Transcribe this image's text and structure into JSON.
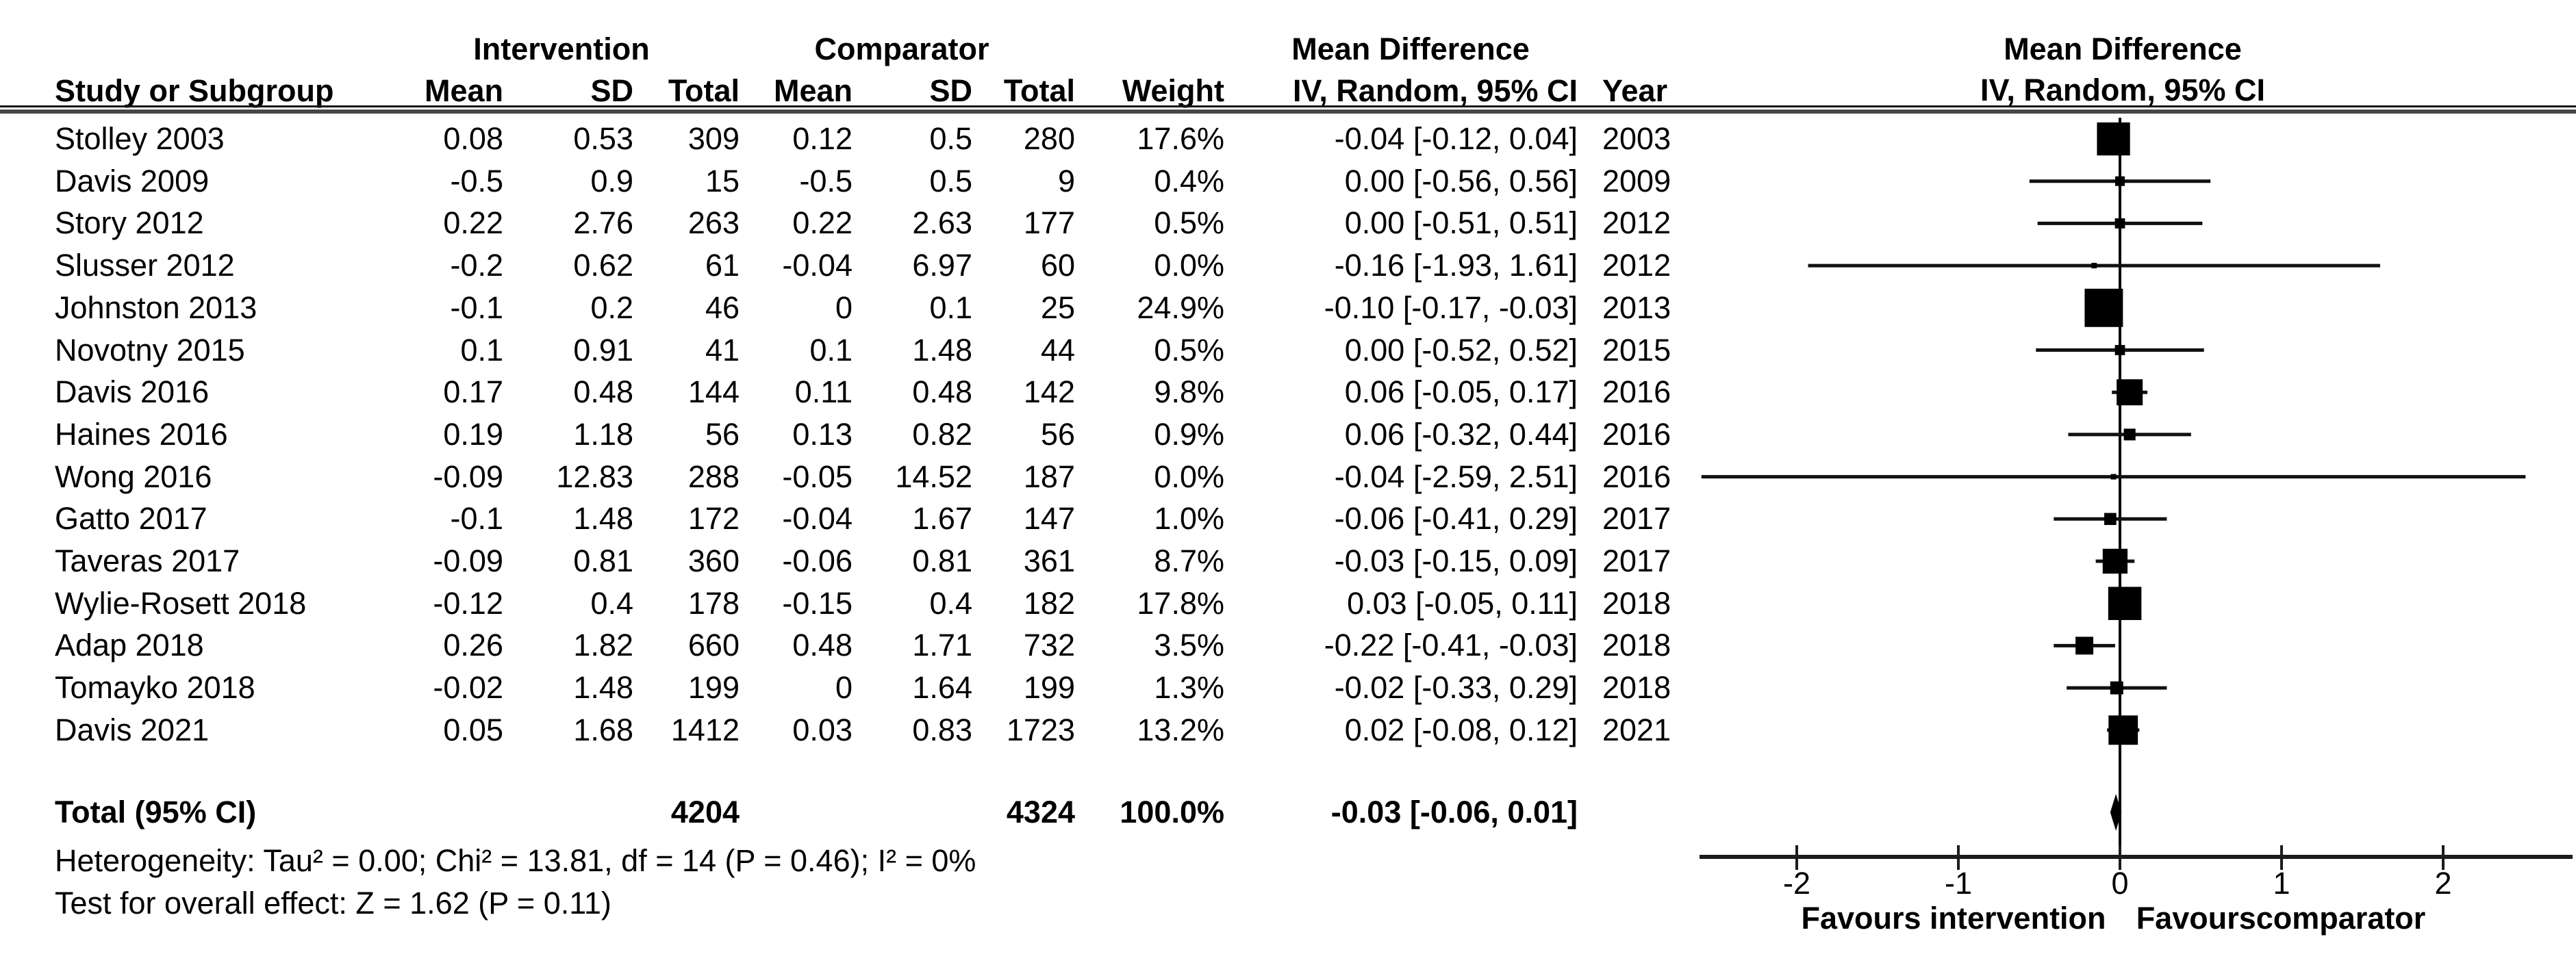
{
  "header": {
    "group_intervention": "Intervention",
    "group_comparator": "Comparator",
    "md_text_title": "Mean Difference",
    "md_text_subtitle": "IV, Random, 95% CI",
    "md_plot_title": "Mean Difference",
    "md_plot_subtitle": "IV, Random, 95% CI",
    "col_study": "Study or Subgroup",
    "col_mean_intervention": "Mean",
    "col_sd_intervention": "SD",
    "col_total_intervention": "Total",
    "col_mean_comparator": "Mean",
    "col_sd_comparator": "SD",
    "col_total_comparator": "Total",
    "col_weight": "Weight",
    "col_year": "Year"
  },
  "footer": {
    "heterogeneity": "Heterogeneity: Tau² = 0.00; Chi² = 13.81, df = 14 (P = 0.46); I² = 0%",
    "overall_effect": "Test for overall effect: Z = 1.62 (P = 0.11)"
  },
  "axis": {
    "favours_left": "Favours intervention",
    "favours_right": "Favourscomparator"
  },
  "chart_data": {
    "type": "forest",
    "effect_measure": "Mean Difference",
    "model": "IV, Random, 95% CI",
    "xlim": [
      -2.61,
      2.8
    ],
    "x_ticks": [
      -2,
      -1,
      0,
      1,
      2
    ],
    "x_tick_labels": [
      "-2",
      "-1",
      "0",
      "1",
      "2"
    ],
    "studies": [
      {
        "name": "Stolley 2003",
        "i_mean": "0.08",
        "i_sd": "0.53",
        "i_total": "309",
        "c_mean": "0.12",
        "c_sd": "0.5",
        "c_total": "280",
        "weight": "17.6%",
        "ci_text": "-0.04 [-0.12, 0.04]",
        "year": "2003",
        "md": -0.04,
        "lo": -0.12,
        "hi": 0.04,
        "w": 17.6
      },
      {
        "name": "Davis 2009",
        "i_mean": "-0.5",
        "i_sd": "0.9",
        "i_total": "15",
        "c_mean": "-0.5",
        "c_sd": "0.5",
        "c_total": "9",
        "weight": "0.4%",
        "ci_text": "0.00 [-0.56, 0.56]",
        "year": "2009",
        "md": 0.0,
        "lo": -0.56,
        "hi": 0.56,
        "w": 0.4
      },
      {
        "name": "Story 2012",
        "i_mean": "0.22",
        "i_sd": "2.76",
        "i_total": "263",
        "c_mean": "0.22",
        "c_sd": "2.63",
        "c_total": "177",
        "weight": "0.5%",
        "ci_text": "0.00 [-0.51, 0.51]",
        "year": "2012",
        "md": 0.0,
        "lo": -0.51,
        "hi": 0.51,
        "w": 0.5
      },
      {
        "name": "Slusser 2012",
        "i_mean": "-0.2",
        "i_sd": "0.62",
        "i_total": "61",
        "c_mean": "-0.04",
        "c_sd": "6.97",
        "c_total": "60",
        "weight": "0.0%",
        "ci_text": "-0.16 [-1.93, 1.61]",
        "year": "2012",
        "md": -0.16,
        "lo": -1.93,
        "hi": 1.61,
        "w": 0.0
      },
      {
        "name": "Johnston 2013",
        "i_mean": "-0.1",
        "i_sd": "0.2",
        "i_total": "46",
        "c_mean": "0",
        "c_sd": "0.1",
        "c_total": "25",
        "weight": "24.9%",
        "ci_text": "-0.10 [-0.17, -0.03]",
        "year": "2013",
        "md": -0.1,
        "lo": -0.17,
        "hi": -0.03,
        "w": 24.9
      },
      {
        "name": "Novotny 2015",
        "i_mean": "0.1",
        "i_sd": "0.91",
        "i_total": "41",
        "c_mean": "0.1",
        "c_sd": "1.48",
        "c_total": "44",
        "weight": "0.5%",
        "ci_text": "0.00 [-0.52, 0.52]",
        "year": "2015",
        "md": 0.0,
        "lo": -0.52,
        "hi": 0.52,
        "w": 0.5
      },
      {
        "name": "Davis 2016",
        "i_mean": "0.17",
        "i_sd": "0.48",
        "i_total": "144",
        "c_mean": "0.11",
        "c_sd": "0.48",
        "c_total": "142",
        "weight": "9.8%",
        "ci_text": "0.06 [-0.05, 0.17]",
        "year": "2016",
        "md": 0.06,
        "lo": -0.05,
        "hi": 0.17,
        "w": 9.8
      },
      {
        "name": "Haines 2016",
        "i_mean": "0.19",
        "i_sd": "1.18",
        "i_total": "56",
        "c_mean": "0.13",
        "c_sd": "0.82",
        "c_total": "56",
        "weight": "0.9%",
        "ci_text": "0.06 [-0.32, 0.44]",
        "year": "2016",
        "md": 0.06,
        "lo": -0.32,
        "hi": 0.44,
        "w": 0.9
      },
      {
        "name": "Wong 2016",
        "i_mean": "-0.09",
        "i_sd": "12.83",
        "i_total": "288",
        "c_mean": "-0.05",
        "c_sd": "14.52",
        "c_total": "187",
        "weight": "0.0%",
        "ci_text": "-0.04 [-2.59, 2.51]",
        "year": "2016",
        "md": -0.04,
        "lo": -2.59,
        "hi": 2.51,
        "w": 0.0
      },
      {
        "name": "Gatto 2017",
        "i_mean": "-0.1",
        "i_sd": "1.48",
        "i_total": "172",
        "c_mean": "-0.04",
        "c_sd": "1.67",
        "c_total": "147",
        "weight": "1.0%",
        "ci_text": "-0.06 [-0.41, 0.29]",
        "year": "2017",
        "md": -0.06,
        "lo": -0.41,
        "hi": 0.29,
        "w": 1.0
      },
      {
        "name": "Taveras 2017",
        "i_mean": "-0.09",
        "i_sd": "0.81",
        "i_total": "360",
        "c_mean": "-0.06",
        "c_sd": "0.81",
        "c_total": "361",
        "weight": "8.7%",
        "ci_text": "-0.03 [-0.15, 0.09]",
        "year": "2017",
        "md": -0.03,
        "lo": -0.15,
        "hi": 0.09,
        "w": 8.7
      },
      {
        "name": "Wylie-Rosett 2018",
        "i_mean": "-0.12",
        "i_sd": "0.4",
        "i_total": "178",
        "c_mean": "-0.15",
        "c_sd": "0.4",
        "c_total": "182",
        "weight": "17.8%",
        "ci_text": "0.03 [-0.05, 0.11]",
        "year": "2018",
        "md": 0.03,
        "lo": -0.05,
        "hi": 0.11,
        "w": 17.8
      },
      {
        "name": "Adap 2018",
        "i_mean": "0.26",
        "i_sd": "1.82",
        "i_total": "660",
        "c_mean": "0.48",
        "c_sd": "1.71",
        "c_total": "732",
        "weight": "3.5%",
        "ci_text": "-0.22 [-0.41, -0.03]",
        "year": "2018",
        "md": -0.22,
        "lo": -0.41,
        "hi": -0.03,
        "w": 3.5
      },
      {
        "name": "Tomayko 2018",
        "i_mean": "-0.02",
        "i_sd": "1.48",
        "i_total": "199",
        "c_mean": "0",
        "c_sd": "1.64",
        "c_total": "199",
        "weight": "1.3%",
        "ci_text": "-0.02 [-0.33, 0.29]",
        "year": "2018",
        "md": -0.02,
        "lo": -0.33,
        "hi": 0.29,
        "w": 1.3
      },
      {
        "name": "Davis 2021",
        "i_mean": "0.05",
        "i_sd": "1.68",
        "i_total": "1412",
        "c_mean": "0.03",
        "c_sd": "0.83",
        "c_total": "1723",
        "weight": "13.2%",
        "ci_text": "0.02 [-0.08, 0.12]",
        "year": "2021",
        "md": 0.02,
        "lo": -0.08,
        "hi": 0.12,
        "w": 13.2
      }
    ],
    "total": {
      "label": "Total (95% CI)",
      "i_total": "4204",
      "c_total": "4324",
      "weight": "100.0%",
      "ci_text": "-0.03 [-0.06, 0.01]",
      "md": -0.03,
      "lo": -0.06,
      "hi": 0.01
    }
  }
}
